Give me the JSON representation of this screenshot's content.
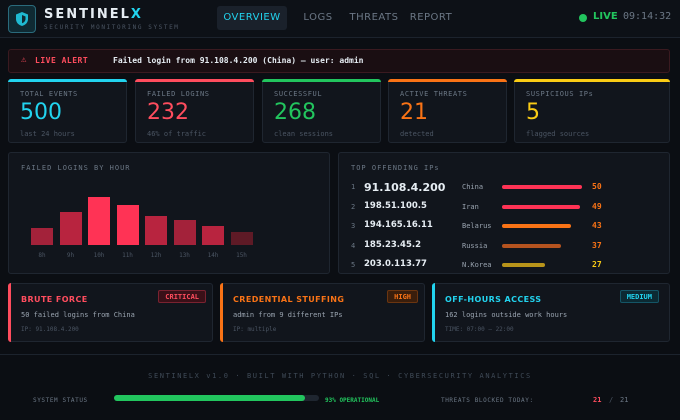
{
  "header": {
    "brand_main": "SENTINEL",
    "brand_accent": "X",
    "subtitle": "SECURITY MONITORING SYSTEM",
    "nav": [
      {
        "label": "OVERVIEW",
        "active": true
      },
      {
        "label": "LOGS",
        "active": false
      },
      {
        "label": "THREATS",
        "active": false
      },
      {
        "label": "REPORT",
        "active": false
      }
    ],
    "live_label": "LIVE",
    "clock": "09:14:32"
  },
  "alert": {
    "label": "LIVE ALERT",
    "message": "Failed login from 91.108.4.200 (China) — user: admin"
  },
  "stats": [
    {
      "label": "TOTAL EVENTS",
      "value": "500",
      "sub": "last 24 hours",
      "color": "#22d3ee"
    },
    {
      "label": "FAILED LOGINS",
      "value": "232",
      "sub": "46% of traffic",
      "color": "#ff4d5e"
    },
    {
      "label": "SUCCESSFUL",
      "value": "268",
      "sub": "clean sessions",
      "color": "#22c55e"
    },
    {
      "label": "ACTIVE THREATS",
      "value": "21",
      "sub": "detected",
      "color": "#f97316"
    },
    {
      "label": "SUSPICIOUS IPs",
      "value": "5",
      "sub": "flagged sources",
      "color": "#facc15"
    }
  ],
  "failed_by_hour": {
    "title": "FAILED LOGINS BY HOUR",
    "chart_data": {
      "type": "bar",
      "categories": [
        "8h",
        "9h",
        "10h",
        "11h",
        "12h",
        "13h",
        "14h",
        "15h"
      ],
      "values": [
        16,
        32,
        46,
        38,
        28,
        24,
        18,
        12
      ],
      "colors": [
        "#a3223a",
        "#b8243f",
        "#ff3355",
        "#ff3355",
        "#b8243f",
        "#a3223a",
        "#b8243f",
        "#5e1a26"
      ]
    }
  },
  "top_ips": {
    "title": "TOP OFFENDING IPs",
    "max": 50,
    "rows": [
      {
        "rank": "1",
        "ip": "91.108.4.200",
        "country": "China",
        "count": "50",
        "value": 50,
        "color": "#ff3355",
        "count_color": "#f97316"
      },
      {
        "rank": "2",
        "ip": "198.51.100.5",
        "country": "Iran",
        "count": "49",
        "value": 49,
        "color": "#ff3355",
        "count_color": "#f97316"
      },
      {
        "rank": "3",
        "ip": "194.165.16.11",
        "country": "Belarus",
        "count": "43",
        "value": 43,
        "color": "#f97316",
        "count_color": "#f97316"
      },
      {
        "rank": "4",
        "ip": "185.23.45.2",
        "country": "Russia",
        "count": "37",
        "value": 37,
        "color": "#b5531f",
        "count_color": "#f97316"
      },
      {
        "rank": "5",
        "ip": "203.0.113.77",
        "country": "N.Korea",
        "count": "27",
        "value": 27,
        "color": "#b8941a",
        "count_color": "#facc15"
      }
    ]
  },
  "threats": [
    {
      "title": "BRUTE FORCE",
      "badge": "CRITICAL",
      "desc": "50 failed logins from China",
      "meta": "IP: 91.108.4.200",
      "color": "#ff4d5e",
      "badge_bg": "#3a1018"
    },
    {
      "title": "CREDENTIAL STUFFING",
      "badge": "HIGH",
      "desc": "admin from 9 different IPs",
      "meta": "IP: multiple",
      "color": "#f97316",
      "badge_bg": "#3a1e0c"
    },
    {
      "title": "OFF-HOURS ACCESS",
      "badge": "MEDIUM",
      "desc": "162 logins outside work hours",
      "meta": "TIME: 07:00 — 22:00",
      "color": "#22d3ee",
      "badge_bg": "#0c2a33"
    }
  ],
  "footer": {
    "text": "SENTINELX v1.0 · BUILT WITH PYTHON · SQL · CYBERSECURITY ANALYTICS",
    "system_status_label": "SYSTEM STATUS",
    "system_progress": 0.93,
    "system_status": "93% OPERATIONAL",
    "blocked_label": "THREATS BLOCKED TODAY:",
    "blocked": "21",
    "blocked_sep": "/",
    "blocked_total": "21"
  }
}
